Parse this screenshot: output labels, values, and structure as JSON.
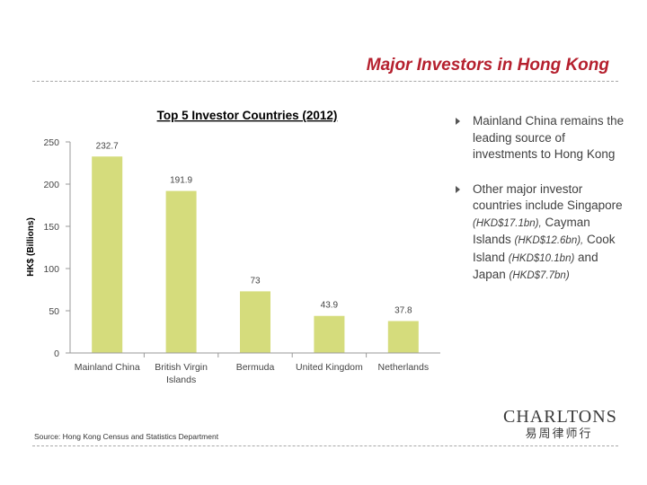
{
  "slide": {
    "title": "Major Investors in Hong Kong",
    "source": "Source: Hong Kong Census and Statistics Department"
  },
  "logo": {
    "name": "CHARLTONS",
    "subtitle": "易周律师行"
  },
  "bullets": [
    {
      "parts": [
        {
          "text": "Mainland China remains the leading source of investments to Hong Kong",
          "style": "normal"
        }
      ]
    },
    {
      "parts": [
        {
          "text": "Other major investor countries include Singapore ",
          "style": "normal"
        },
        {
          "text": "(HKD$17.1bn),",
          "style": "italic"
        },
        {
          "text": " Cayman Islands ",
          "style": "normal"
        },
        {
          "text": "(HKD$12.6bn),",
          "style": "italic"
        },
        {
          "text": " Cook Island ",
          "style": "normal"
        },
        {
          "text": "(HKD$10.1bn)",
          "style": "italic"
        },
        {
          "text": " and Japan ",
          "style": "normal"
        },
        {
          "text": "(HKD$7.7bn)",
          "style": "italic"
        }
      ]
    }
  ],
  "chart_data": {
    "type": "bar",
    "title": "Top 5 Investor Countries (2012)",
    "xlabel": "",
    "ylabel": "HK$ (Billions)",
    "categories": [
      "Mainland China",
      "British Virgin Islands",
      "Bermuda",
      "United Kingdom",
      "Netherlands"
    ],
    "values": [
      232.7,
      191.9,
      73,
      43.9,
      37.8
    ],
    "value_labels": [
      "232.7",
      "191.9",
      "73",
      "43.9",
      "37.8"
    ],
    "ylim": [
      0,
      250
    ],
    "yticks": [
      0,
      50,
      100,
      150,
      200,
      250
    ],
    "grid": false,
    "legend": "none",
    "colors": {
      "bar": "#d5dc7c",
      "axis": "#9a9a9a",
      "text": "#444444",
      "title": "#222222"
    }
  }
}
